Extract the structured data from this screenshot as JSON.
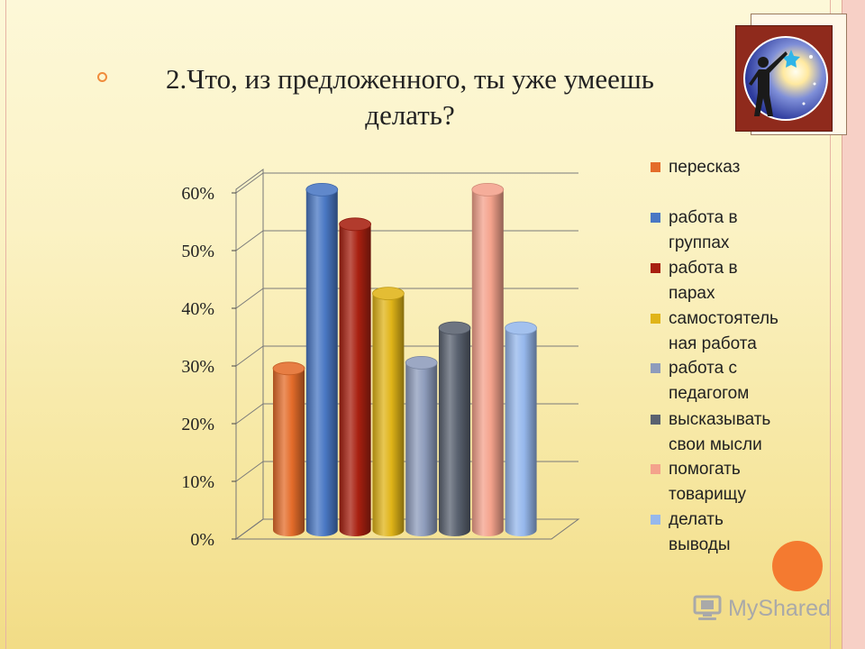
{
  "slide": {
    "title": "2.Что, из предложенного, ты уже умеешь делать?",
    "watermark": "MyShared"
  },
  "chart_data": {
    "type": "bar",
    "title": "",
    "xlabel": "",
    "ylabel": "",
    "ylim": [
      0,
      0.6
    ],
    "y_ticks": [
      "0%",
      "10%",
      "20%",
      "30%",
      "40%",
      "50%",
      "60%"
    ],
    "legend_position": "right",
    "series": [
      {
        "name": "пересказ",
        "value": 0.28,
        "color": "#e46c2a"
      },
      {
        "name": "работа в группах",
        "value": 0.59,
        "color": "#4a78c4"
      },
      {
        "name": "работа в парах",
        "value": 0.53,
        "color": "#a82010"
      },
      {
        "name": "самостоятельная работа",
        "value": 0.41,
        "color": "#e0b418"
      },
      {
        "name": "работа с педагогом",
        "value": 0.29,
        "color": "#8e9cbc"
      },
      {
        "name": "высказывать свои мысли",
        "value": 0.35,
        "color": "#5a6270"
      },
      {
        "name": "помогать товарищу",
        "value": 0.59,
        "color": "#f4a28c"
      },
      {
        "name": "делать выводы",
        "value": 0.35,
        "color": "#96b8ec"
      }
    ]
  },
  "legend": {
    "labels": [
      "пересказ",
      "работа в\nгруппах",
      "работа в\nпарах",
      "самостоятель\nная работа",
      "работа с\nпедагогом",
      "высказывать\nсвои мысли",
      "помогать\nтоварищу",
      "делать\nвыводы"
    ]
  }
}
